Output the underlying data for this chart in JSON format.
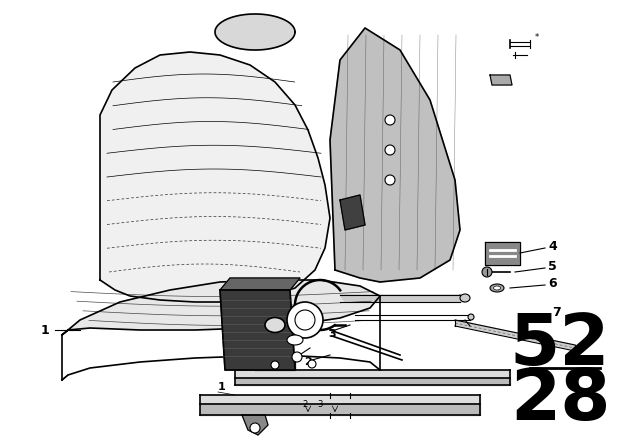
{
  "bg_color": "#ffffff",
  "line_color": "#000000",
  "fig_width": 6.4,
  "fig_height": 4.48,
  "dpi": 100,
  "part_number_top": "52",
  "part_number_bottom": "28",
  "part_number_fontsize": 52
}
